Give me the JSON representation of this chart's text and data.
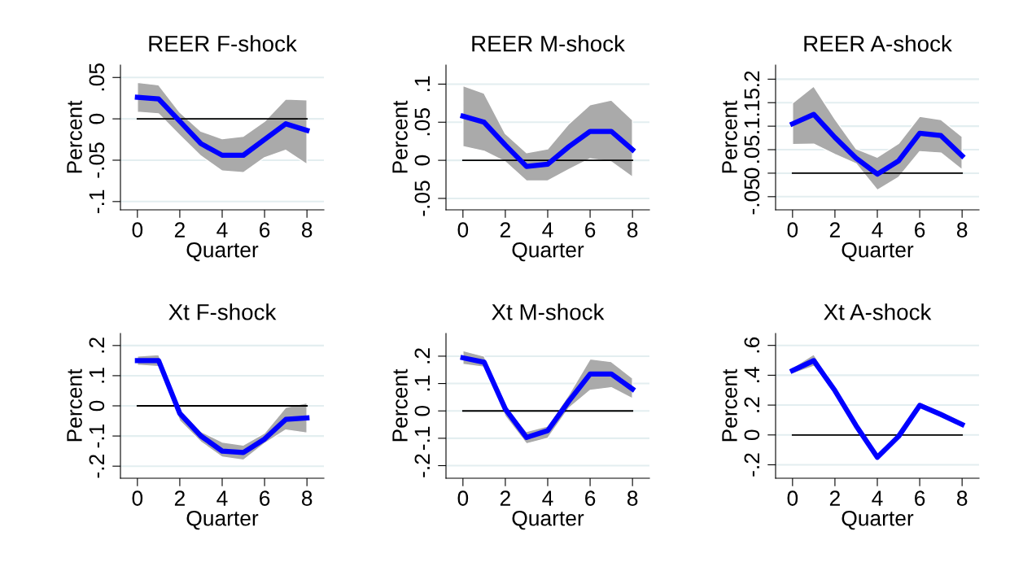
{
  "chart_data": [
    {
      "type": "line",
      "title": "REER F-shock",
      "xlabel": "Quarter",
      "ylabel": "Percent",
      "x": [
        0,
        1,
        2,
        3,
        4,
        5,
        6,
        7,
        8
      ],
      "xlim": [
        -0.8,
        8.8
      ],
      "xticks": [
        0,
        2,
        4,
        6,
        8
      ],
      "ylim": [
        -0.11,
        0.065
      ],
      "yticks": [
        {
          "value": -0.1,
          "label": "-.1"
        },
        {
          "value": -0.05,
          "label": "-.05"
        },
        0,
        {
          "value": 0.05,
          "label": ".05"
        }
      ],
      "grid": "y",
      "ref_lines": [
        {
          "axis": "y",
          "value": 0,
          "color": "#000000"
        }
      ],
      "series": [
        {
          "color": "#0000ff",
          "values": [
            0.026,
            0.024,
            -0.003,
            -0.03,
            -0.044,
            -0.044,
            -0.025,
            -0.006,
            -0.014
          ],
          "lower": [
            0.008,
            0.006,
            -0.02,
            -0.045,
            -0.063,
            -0.065,
            -0.047,
            -0.038,
            -0.055
          ],
          "upper": [
            0.044,
            0.041,
            0.008,
            -0.015,
            -0.024,
            -0.021,
            -0.003,
            0.024,
            0.023
          ]
        }
      ]
    },
    {
      "type": "line",
      "title": "REER M-shock",
      "xlabel": "Quarter",
      "ylabel": "Percent",
      "x": [
        0,
        1,
        2,
        3,
        4,
        5,
        6,
        7,
        8
      ],
      "xlim": [
        -0.8,
        8.8
      ],
      "xticks": [
        0,
        2,
        4,
        6,
        8
      ],
      "ylim": [
        -0.065,
        0.125
      ],
      "yticks": [
        {
          "value": -0.05,
          "label": "-.05"
        },
        0,
        {
          "value": 0.05,
          "label": ".05"
        },
        {
          "value": 0.1,
          "label": ".1"
        }
      ],
      "grid": "y",
      "ref_lines": [
        {
          "axis": "y",
          "value": 0,
          "color": "#000000"
        }
      ],
      "series": [
        {
          "color": "#0000ff",
          "values": [
            0.058,
            0.05,
            0.02,
            -0.008,
            -0.005,
            0.018,
            0.038,
            0.038,
            0.014
          ],
          "lower": [
            0.018,
            0.012,
            -0.002,
            -0.027,
            -0.027,
            -0.012,
            0.002,
            -0.002,
            -0.022
          ],
          "upper": [
            0.098,
            0.088,
            0.035,
            0.01,
            0.015,
            0.048,
            0.073,
            0.079,
            0.053
          ]
        }
      ]
    },
    {
      "type": "line",
      "title": "REER A-shock",
      "xlabel": "Quarter",
      "ylabel": "Percent",
      "x": [
        0,
        1,
        2,
        3,
        4,
        5,
        6,
        7,
        8
      ],
      "xlim": [
        -0.8,
        8.8
      ],
      "xticks": [
        0,
        2,
        4,
        6,
        8
      ],
      "ylim": [
        -0.078,
        0.23
      ],
      "yticks": [
        {
          "value": -0.05,
          "label": "-.05"
        },
        0,
        {
          "value": 0.05,
          "label": ".05"
        },
        {
          "value": 0.1,
          "label": ".1"
        },
        {
          "value": 0.15,
          "label": ".15"
        },
        {
          "value": 0.2,
          "label": ".2"
        }
      ],
      "grid": "y",
      "ref_lines": [
        {
          "axis": "y",
          "value": 0,
          "color": "#000000"
        }
      ],
      "series": [
        {
          "color": "#0000ff",
          "values": [
            0.105,
            0.125,
            0.076,
            0.032,
            -0.002,
            0.026,
            0.085,
            0.08,
            0.037
          ],
          "lower": [
            0.061,
            0.062,
            0.04,
            0.02,
            -0.036,
            -0.009,
            0.046,
            0.043,
            0.007
          ],
          "upper": [
            0.149,
            0.185,
            0.115,
            0.052,
            0.034,
            0.063,
            0.121,
            0.114,
            0.078
          ]
        }
      ]
    },
    {
      "type": "line",
      "title": "Xt F-shock",
      "xlabel": "Quarter",
      "ylabel": "Percent",
      "x": [
        0,
        1,
        2,
        3,
        4,
        5,
        6,
        7,
        8
      ],
      "xlim": [
        -0.8,
        8.8
      ],
      "xticks": [
        0,
        2,
        4,
        6,
        8
      ],
      "ylim": [
        -0.24,
        0.24
      ],
      "yticks": [
        {
          "value": -0.2,
          "label": "-.2"
        },
        {
          "value": -0.1,
          "label": "-.1"
        },
        0,
        {
          "value": 0.1,
          "label": ".1"
        },
        {
          "value": 0.2,
          "label": ".2"
        }
      ],
      "grid": "y",
      "ref_lines": [
        {
          "axis": "y",
          "value": 0,
          "color": "#000000"
        }
      ],
      "series": [
        {
          "color": "#0000ff",
          "values": [
            0.15,
            0.15,
            -0.025,
            -0.1,
            -0.15,
            -0.155,
            -0.11,
            -0.045,
            -0.04
          ],
          "lower": [
            0.135,
            0.13,
            -0.05,
            -0.12,
            -0.17,
            -0.18,
            -0.125,
            -0.08,
            -0.09
          ],
          "upper": [
            0.165,
            0.17,
            -0.01,
            -0.085,
            -0.12,
            -0.13,
            -0.09,
            -0.005,
            0.01
          ]
        }
      ]
    },
    {
      "type": "line",
      "title": "Xt M-shock",
      "xlabel": "Quarter",
      "ylabel": "Percent",
      "x": [
        0,
        1,
        2,
        3,
        4,
        5,
        6,
        7,
        8
      ],
      "xlim": [
        -0.8,
        8.8
      ],
      "xticks": [
        0,
        2,
        4,
        6,
        8
      ],
      "ylim": [
        -0.246,
        0.283
      ],
      "yticks": [
        {
          "value": -0.2,
          "label": "-.2"
        },
        {
          "value": -0.1,
          "label": "-.1"
        },
        0,
        {
          "value": 0.1,
          "label": ".1"
        },
        {
          "value": 0.2,
          "label": ".2"
        }
      ],
      "grid": "y",
      "ref_lines": [
        {
          "axis": "y",
          "value": 0,
          "color": "#000000"
        }
      ],
      "series": [
        {
          "color": "#0000ff",
          "values": [
            0.194,
            0.178,
            0.007,
            -0.097,
            -0.072,
            0.036,
            0.135,
            0.135,
            0.08
          ],
          "lower": [
            0.17,
            0.16,
            -0.02,
            -0.12,
            -0.1,
            0.01,
            0.075,
            0.085,
            0.045
          ],
          "upper": [
            0.22,
            0.2,
            0.02,
            -0.075,
            -0.055,
            0.06,
            0.19,
            0.18,
            0.12
          ]
        }
      ]
    },
    {
      "type": "line",
      "title": "Xt A-shock",
      "xlabel": "Quarter",
      "ylabel": "Percent",
      "x": [
        0,
        1,
        2,
        3,
        4,
        5,
        6,
        7,
        8
      ],
      "xlim": [
        -0.8,
        8.8
      ],
      "xticks": [
        0,
        2,
        4,
        6,
        8
      ],
      "ylim": [
        -0.29,
        0.68
      ],
      "yticks": [
        {
          "value": -0.2,
          "label": "-.2"
        },
        0,
        {
          "value": 0.2,
          "label": ".2"
        },
        {
          "value": 0.4,
          "label": ".4"
        },
        {
          "value": 0.6,
          "label": ".6"
        }
      ],
      "grid": "y",
      "ref_lines": [
        {
          "axis": "y",
          "value": 0,
          "color": "#000000"
        }
      ],
      "series": [
        {
          "color": "#0000ff",
          "values": [
            0.431,
            0.498,
            0.297,
            0.062,
            -0.15,
            -0.01,
            0.198,
            0.137,
            0.07
          ],
          "lower": [
            0.41,
            0.46,
            0.28,
            0.04,
            -0.17,
            -0.03,
            0.18,
            0.12,
            0.05
          ],
          "upper": [
            0.45,
            0.54,
            0.32,
            0.08,
            -0.13,
            0.01,
            0.22,
            0.16,
            0.09
          ]
        }
      ]
    }
  ]
}
